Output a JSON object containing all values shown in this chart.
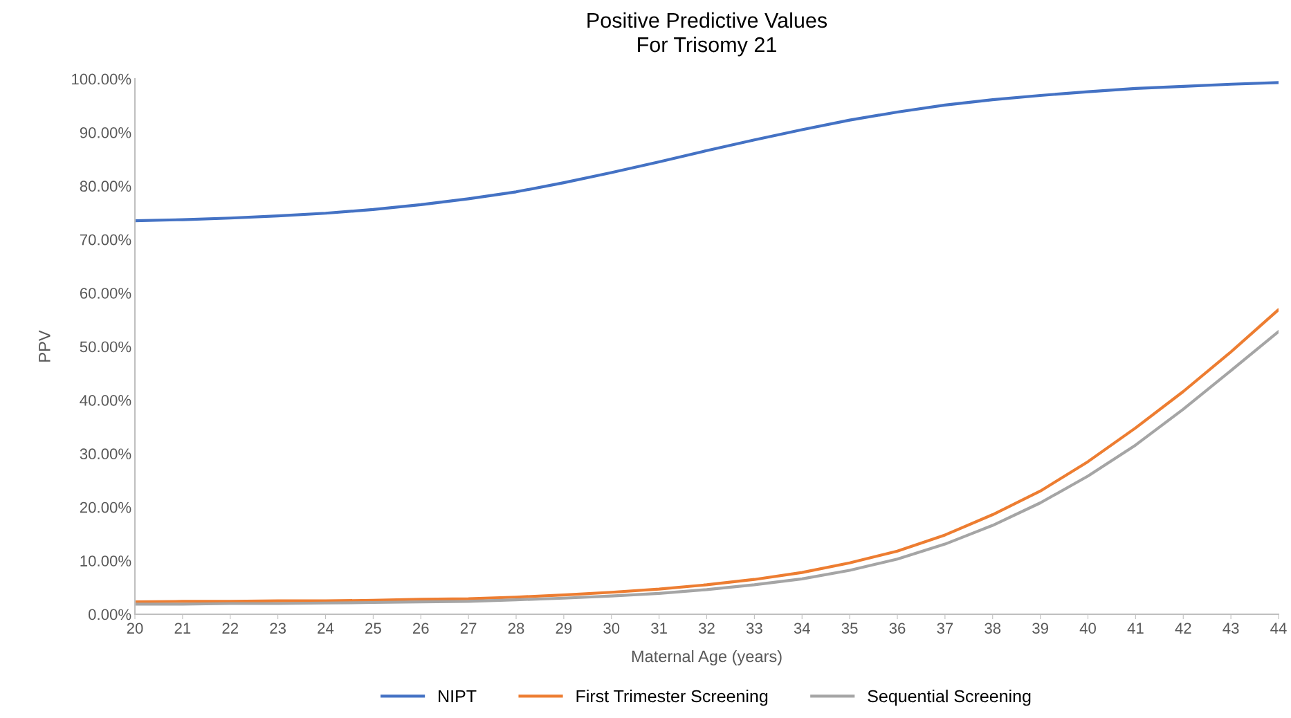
{
  "chart_data": {
    "type": "line",
    "title": "Positive Predictive Values\nFor Trisomy 21",
    "xlabel": "Maternal Age (years)",
    "ylabel": "PPV",
    "x": [
      20,
      21,
      22,
      23,
      24,
      25,
      26,
      27,
      28,
      29,
      30,
      31,
      32,
      33,
      34,
      35,
      36,
      37,
      38,
      39,
      40,
      41,
      42,
      43,
      44
    ],
    "series": [
      {
        "name": "NIPT",
        "color": "#4472c4",
        "values": [
          73.5,
          73.7,
          74.0,
          74.4,
          74.9,
          75.6,
          76.5,
          77.6,
          78.9,
          80.6,
          82.5,
          84.5,
          86.6,
          88.6,
          90.5,
          92.3,
          93.8,
          95.1,
          96.1,
          96.9,
          97.6,
          98.2,
          98.6,
          99.0,
          99.3
        ]
      },
      {
        "name": "First Trimester Screening",
        "color": "#ed7d31",
        "values": [
          2.3,
          2.4,
          2.4,
          2.5,
          2.5,
          2.6,
          2.8,
          2.9,
          3.2,
          3.6,
          4.1,
          4.7,
          5.5,
          6.5,
          7.8,
          9.6,
          11.8,
          14.8,
          18.6,
          23.0,
          28.5,
          34.8,
          41.6,
          49.0,
          56.9
        ]
      },
      {
        "name": "Sequential Screening",
        "color": "#a5a5a5",
        "values": [
          1.9,
          1.9,
          2.0,
          2.0,
          2.1,
          2.2,
          2.3,
          2.4,
          2.7,
          3.0,
          3.4,
          3.9,
          4.6,
          5.5,
          6.6,
          8.2,
          10.3,
          13.1,
          16.6,
          20.8,
          25.8,
          31.6,
          38.3,
          45.5,
          52.8
        ]
      }
    ],
    "xlim": [
      20,
      44
    ],
    "xticks": [
      20,
      21,
      22,
      23,
      24,
      25,
      26,
      27,
      28,
      29,
      30,
      31,
      32,
      33,
      34,
      35,
      36,
      37,
      38,
      39,
      40,
      41,
      42,
      43,
      44
    ],
    "ylim": [
      0,
      100
    ],
    "yticks": [
      {
        "value": 0,
        "label": "0.00%"
      },
      {
        "value": 10,
        "label": "10.00%"
      },
      {
        "value": 20,
        "label": "20.00%"
      },
      {
        "value": 30,
        "label": "30.00%"
      },
      {
        "value": 40,
        "label": "40.00%"
      },
      {
        "value": 50,
        "label": "50.00%"
      },
      {
        "value": 60,
        "label": "60.00%"
      },
      {
        "value": 70,
        "label": "70.00%"
      },
      {
        "value": 80,
        "label": "80.00%"
      },
      {
        "value": 90,
        "label": "90.00%"
      },
      {
        "value": 100,
        "label": "100.00%"
      }
    ],
    "grid": false,
    "legend": "bottom",
    "marker": "none",
    "line_style": "solid"
  }
}
